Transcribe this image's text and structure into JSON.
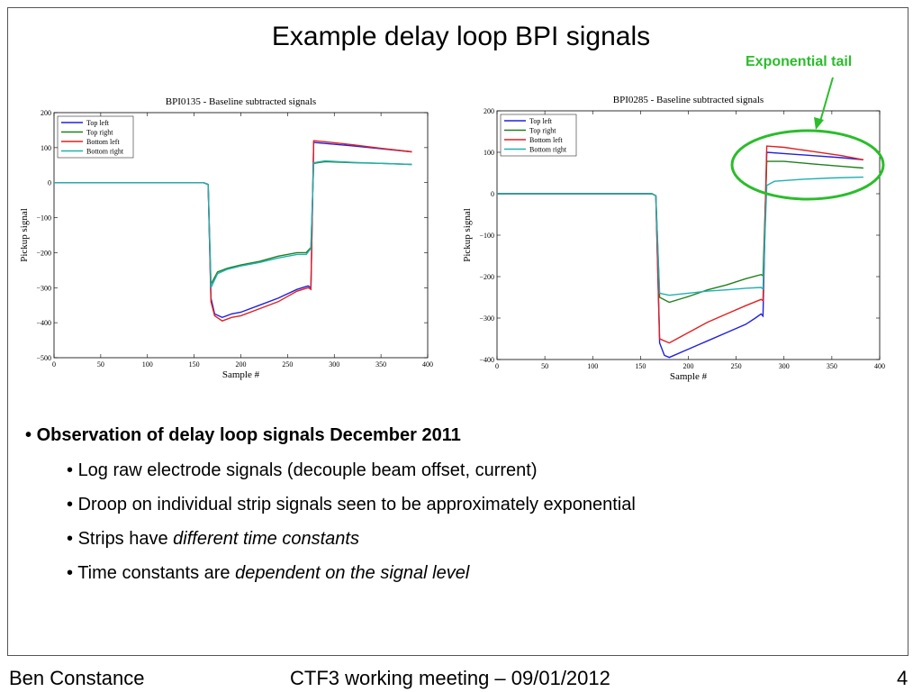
{
  "slide": {
    "title": "Example delay loop BPI signals",
    "annotation": "Exponential tail",
    "bullets": {
      "main": "Observation of delay loop signals December 2011",
      "sub1": "Log raw electrode signals (decouple beam offset, current)",
      "sub2": "Droop on individual strip signals seen to be approximately exponential",
      "sub3_plain": "Strips have ",
      "sub3_italic": "different time constants",
      "sub4_plain": "Time constants are ",
      "sub4_italic": "dependent on the signal level"
    },
    "footer": {
      "author": "Ben Constance",
      "meeting": "CTF3 working meeting – 09/01/2012",
      "page": "4"
    }
  },
  "chart_data": [
    {
      "type": "line",
      "title": "BPI0135 - Baseline subtracted signals",
      "xlabel": "Sample #",
      "ylabel": "Pickup signal",
      "xlim": [
        0,
        400
      ],
      "ylim": [
        -500,
        200
      ],
      "xticks": [
        0,
        50,
        100,
        150,
        200,
        250,
        300,
        350,
        400
      ],
      "yticks": [
        -500,
        -400,
        -300,
        -200,
        -100,
        0,
        100,
        200
      ],
      "legend": "top-left",
      "series": [
        {
          "name": "Top left",
          "color": "#2020e0",
          "points": [
            [
              0,
              0
            ],
            [
              160,
              0
            ],
            [
              165,
              -5
            ],
            [
              168,
              -330
            ],
            [
              172,
              -375
            ],
            [
              180,
              -385
            ],
            [
              190,
              -375
            ],
            [
              200,
              -370
            ],
            [
              220,
              -350
            ],
            [
              240,
              -330
            ],
            [
              260,
              -305
            ],
            [
              272,
              -295
            ],
            [
              275,
              -300
            ],
            [
              278,
              115
            ],
            [
              290,
              112
            ],
            [
              320,
              105
            ],
            [
              350,
              97
            ],
            [
              383,
              88
            ]
          ]
        },
        {
          "name": "Top right",
          "color": "#208020",
          "points": [
            [
              0,
              0
            ],
            [
              160,
              0
            ],
            [
              165,
              -5
            ],
            [
              168,
              -290
            ],
            [
              175,
              -255
            ],
            [
              185,
              -245
            ],
            [
              200,
              -235
            ],
            [
              220,
              -225
            ],
            [
              240,
              -210
            ],
            [
              260,
              -200
            ],
            [
              270,
              -200
            ],
            [
              275,
              -185
            ],
            [
              278,
              55
            ],
            [
              290,
              60
            ],
            [
              320,
              57
            ],
            [
              350,
              55
            ],
            [
              383,
              52
            ]
          ]
        },
        {
          "name": "Bottom left",
          "color": "#e02020",
          "points": [
            [
              0,
              0
            ],
            [
              160,
              0
            ],
            [
              165,
              -5
            ],
            [
              168,
              -340
            ],
            [
              172,
              -380
            ],
            [
              180,
              -395
            ],
            [
              190,
              -385
            ],
            [
              200,
              -380
            ],
            [
              220,
              -360
            ],
            [
              240,
              -340
            ],
            [
              260,
              -310
            ],
            [
              272,
              -300
            ],
            [
              275,
              -305
            ],
            [
              278,
              120
            ],
            [
              290,
              117
            ],
            [
              320,
              108
            ],
            [
              350,
              98
            ],
            [
              383,
              88
            ]
          ]
        },
        {
          "name": "Bottom right",
          "color": "#20b0b0",
          "points": [
            [
              0,
              0
            ],
            [
              160,
              0
            ],
            [
              165,
              -5
            ],
            [
              168,
              -300
            ],
            [
              175,
              -260
            ],
            [
              185,
              -248
            ],
            [
              200,
              -238
            ],
            [
              220,
              -228
            ],
            [
              240,
              -215
            ],
            [
              260,
              -205
            ],
            [
              270,
              -205
            ],
            [
              275,
              -188
            ],
            [
              278,
              57
            ],
            [
              290,
              62
            ],
            [
              320,
              58
            ],
            [
              350,
              55
            ],
            [
              383,
              52
            ]
          ]
        }
      ]
    },
    {
      "type": "line",
      "title": "BPI0285 - Baseline subtracted signals",
      "xlabel": "Sample #",
      "ylabel": "Pickup signal",
      "xlim": [
        0,
        400
      ],
      "ylim": [
        -400,
        200
      ],
      "xticks": [
        0,
        50,
        100,
        150,
        200,
        250,
        300,
        350,
        400
      ],
      "yticks": [
        -400,
        -300,
        -200,
        -100,
        0,
        100,
        200
      ],
      "legend": "top-left",
      "series": [
        {
          "name": "Top left",
          "color": "#2020e0",
          "points": [
            [
              0,
              0
            ],
            [
              162,
              0
            ],
            [
              166,
              -5
            ],
            [
              170,
              -360
            ],
            [
              175,
              -390
            ],
            [
              180,
              -395
            ],
            [
              200,
              -375
            ],
            [
              220,
              -355
            ],
            [
              240,
              -335
            ],
            [
              260,
              -315
            ],
            [
              270,
              -300
            ],
            [
              276,
              -290
            ],
            [
              278,
              -295
            ],
            [
              282,
              100
            ],
            [
              300,
              97
            ],
            [
              330,
              92
            ],
            [
              360,
              87
            ],
            [
              383,
              82
            ]
          ]
        },
        {
          "name": "Top right",
          "color": "#208020",
          "points": [
            [
              0,
              0
            ],
            [
              162,
              0
            ],
            [
              166,
              -5
            ],
            [
              170,
              -250
            ],
            [
              180,
              -262
            ],
            [
              200,
              -248
            ],
            [
              220,
              -232
            ],
            [
              240,
              -220
            ],
            [
              260,
              -205
            ],
            [
              276,
              -195
            ],
            [
              278,
              -198
            ],
            [
              282,
              78
            ],
            [
              300,
              78
            ],
            [
              330,
              72
            ],
            [
              360,
              66
            ],
            [
              383,
              62
            ]
          ]
        },
        {
          "name": "Bottom left",
          "color": "#e02020",
          "points": [
            [
              0,
              0
            ],
            [
              162,
              0
            ],
            [
              166,
              -5
            ],
            [
              170,
              -350
            ],
            [
              180,
              -360
            ],
            [
              200,
              -335
            ],
            [
              220,
              -310
            ],
            [
              240,
              -290
            ],
            [
              260,
              -270
            ],
            [
              276,
              -255
            ],
            [
              278,
              -258
            ],
            [
              282,
              115
            ],
            [
              300,
              112
            ],
            [
              330,
              102
            ],
            [
              360,
              92
            ],
            [
              383,
              82
            ]
          ]
        },
        {
          "name": "Bottom right",
          "color": "#20b0b0",
          "points": [
            [
              0,
              0
            ],
            [
              162,
              0
            ],
            [
              166,
              -5
            ],
            [
              170,
              -240
            ],
            [
              180,
              -245
            ],
            [
              200,
              -240
            ],
            [
              220,
              -235
            ],
            [
              240,
              -232
            ],
            [
              260,
              -228
            ],
            [
              276,
              -226
            ],
            [
              278,
              -230
            ],
            [
              282,
              20
            ],
            [
              290,
              30
            ],
            [
              320,
              35
            ],
            [
              350,
              38
            ],
            [
              383,
              40
            ]
          ]
        }
      ]
    }
  ]
}
